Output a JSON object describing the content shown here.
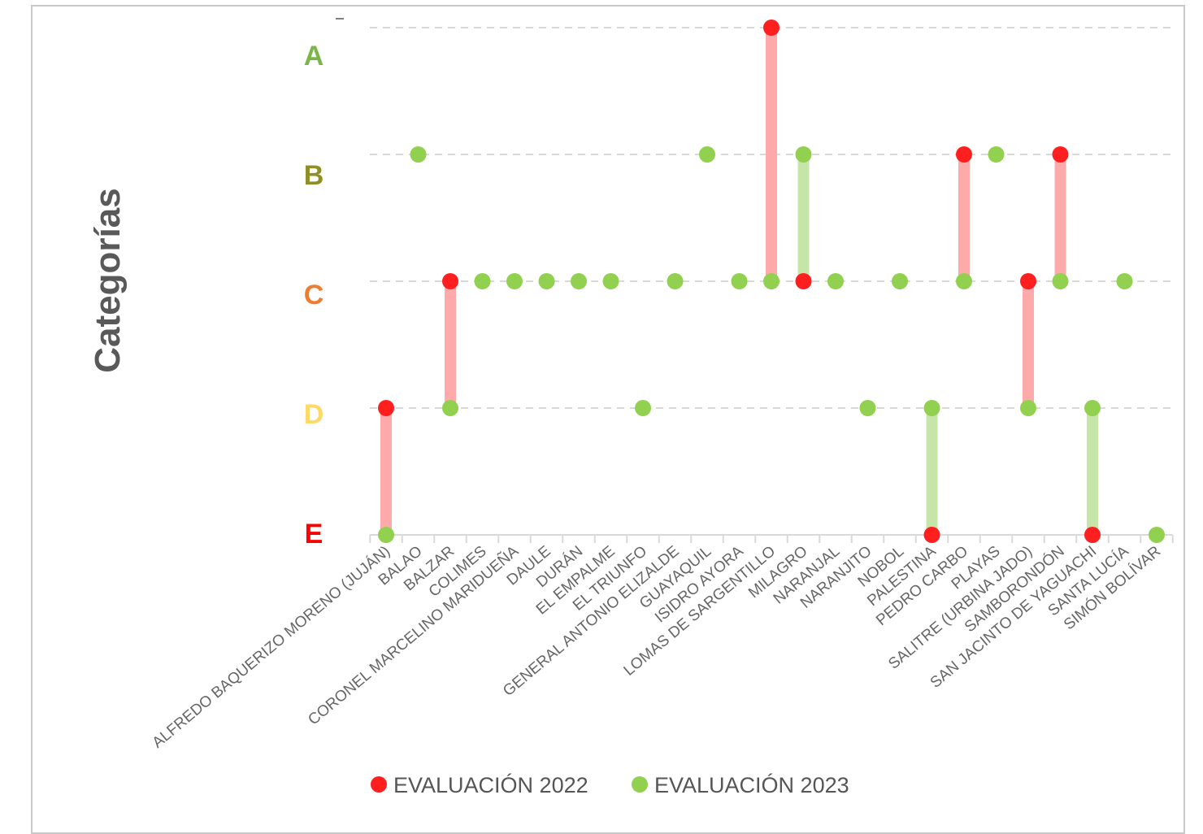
{
  "chart_data": {
    "type": "scatter",
    "ylabel": "Categorías",
    "y_categories": [
      {
        "label": "A",
        "color": "#7ab648"
      },
      {
        "label": "B",
        "color": "#8f8f25"
      },
      {
        "label": "C",
        "color": "#ed7d31"
      },
      {
        "label": "D",
        "color": "#ffd966"
      },
      {
        "label": "E",
        "color": "#ff0000"
      }
    ],
    "categories": [
      "ALFREDO BAQUERIZO MORENO (JUJÁN)",
      "BALAO",
      "BALZAR",
      "COLIMES",
      "CORONEL MARCELINO MARIDUEÑA",
      "DAULE",
      "DURÁN",
      "EL EMPALME",
      "EL TRIUNFO",
      "GENERAL ANTONIO ELIZALDE",
      "GUAYAQUIL",
      "ISIDRO AYORA",
      "LOMAS DE SARGENTILLO",
      "MILAGRO",
      "NARANJAL",
      "NARANJITO",
      "NOBOL",
      "PALESTINA",
      "PEDRO CARBO",
      "PLAYAS",
      "SALITRE (URBINA JADO)",
      "SAMBORONDÓN",
      "SAN JACINTO DE YAGUACHI",
      "SANTA LUCÍA",
      "SIMÓN BOLÍVAR"
    ],
    "series": [
      {
        "name": "EVALUACIÓN 2022",
        "color": "#ff1f1f",
        "bar_color": "#ffaaaa",
        "values": [
          "D",
          null,
          "C",
          null,
          null,
          null,
          null,
          null,
          null,
          null,
          null,
          null,
          "A",
          "C",
          null,
          null,
          null,
          "E",
          "B",
          null,
          "C",
          "B",
          "E",
          null,
          null
        ]
      },
      {
        "name": "EVALUACIÓN 2023",
        "color": "#92d050",
        "bar_color": "#c6e5a8",
        "values": [
          "E",
          "B",
          "D",
          "C",
          "C",
          "C",
          "C",
          "C",
          "D",
          "C",
          "B",
          "C",
          "C",
          "B",
          "C",
          "D",
          "C",
          "D",
          "C",
          "B",
          "D",
          "C",
          "D",
          "C",
          "E"
        ]
      }
    ],
    "legend_position": "bottom",
    "grid": "horizontal dashed"
  }
}
